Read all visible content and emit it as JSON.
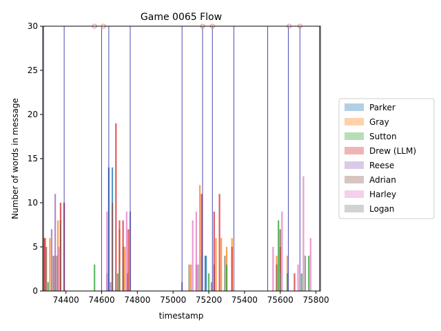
{
  "chart_data": {
    "type": "bar",
    "title": "Game 0065 Flow",
    "xlabel": "timestamp",
    "ylabel": "Number of words in message",
    "xlim": [
      74270,
      75825
    ],
    "ylim": [
      0,
      30
    ],
    "xticks": [
      74400,
      74600,
      74800,
      75000,
      75200,
      75400,
      75600,
      75800
    ],
    "yticks": [
      0,
      5,
      10,
      15,
      20,
      25,
      30
    ],
    "legend_position": "center-right",
    "series": [
      {
        "name": "Parker",
        "color": "#1f77b4",
        "points": [
          [
            74640,
            14
          ],
          [
            74660,
            14
          ],
          [
            75180,
            4
          ],
          [
            75185,
            4
          ],
          [
            75230,
            3
          ]
        ]
      },
      {
        "name": "Gray",
        "color": "#ff7f0e",
        "points": [
          [
            74285,
            6
          ],
          [
            74310,
            6
          ],
          [
            74340,
            4
          ],
          [
            74355,
            8
          ],
          [
            74700,
            7
          ],
          [
            74730,
            5
          ],
          [
            75100,
            3
          ],
          [
            75150,
            12
          ],
          [
            75240,
            6
          ],
          [
            75270,
            6
          ],
          [
            75300,
            5
          ],
          [
            75330,
            6
          ],
          [
            75580,
            4
          ],
          [
            75640,
            4
          ]
        ]
      },
      {
        "name": "Sutton",
        "color": "#2ca02c",
        "points": [
          [
            74300,
            1
          ],
          [
            74560,
            3
          ],
          [
            74690,
            2
          ],
          [
            74745,
            2
          ],
          [
            75200,
            2
          ],
          [
            75300,
            3
          ],
          [
            75590,
            8
          ],
          [
            75640,
            2
          ],
          [
            75720,
            2
          ],
          [
            75760,
            4
          ]
        ]
      },
      {
        "name": "Drew (LLM)",
        "color": "#d62728",
        "points": [
          [
            74280,
            6
          ],
          [
            74370,
            10
          ],
          [
            74390,
            10
          ],
          [
            74680,
            19
          ],
          [
            74700,
            8
          ],
          [
            74720,
            8
          ],
          [
            74750,
            7
          ],
          [
            75160,
            11
          ],
          [
            75230,
            9
          ],
          [
            75260,
            11
          ],
          [
            75330,
            5
          ],
          [
            75600,
            5
          ],
          [
            75680,
            2
          ]
        ]
      },
      {
        "name": "Reese",
        "color": "#9467bd",
        "points": [
          [
            74320,
            7
          ],
          [
            74340,
            11
          ],
          [
            74630,
            2
          ],
          [
            74650,
            1
          ],
          [
            74760,
            9
          ],
          [
            75050,
            1
          ],
          [
            75130,
            3
          ],
          [
            75160,
            4
          ],
          [
            75215,
            1
          ]
        ]
      },
      {
        "name": "Adrian",
        "color": "#8c564b",
        "points": [
          [
            74290,
            5
          ],
          [
            74330,
            4
          ],
          [
            74370,
            8
          ],
          [
            74660,
            10
          ],
          [
            74720,
            5
          ],
          [
            75580,
            3
          ],
          [
            75600,
            7
          ]
        ]
      },
      {
        "name": "Harley",
        "color": "#e377c2",
        "points": [
          [
            74360,
            5
          ],
          [
            74630,
            9
          ],
          [
            74740,
            9
          ],
          [
            75110,
            8
          ],
          [
            75130,
            9
          ],
          [
            75560,
            5
          ],
          [
            75610,
            9
          ],
          [
            75700,
            3
          ],
          [
            75730,
            13
          ],
          [
            75770,
            6
          ]
        ]
      },
      {
        "name": "Logan",
        "color": "#7f7f7f",
        "points": [
          [
            74350,
            4
          ],
          [
            74700,
            3
          ],
          [
            75090,
            3
          ],
          [
            75140,
            3
          ],
          [
            75290,
            4
          ],
          [
            75600,
            2
          ],
          [
            75740,
            4
          ]
        ]
      }
    ],
    "reference_lines": [
      74275,
      74390,
      74600,
      74640,
      74760,
      75050,
      75165,
      75220,
      75340,
      75530,
      75645,
      75710,
      75820
    ],
    "top_markers": [
      74560,
      74610,
      75165,
      75220,
      75650,
      75710
    ]
  }
}
